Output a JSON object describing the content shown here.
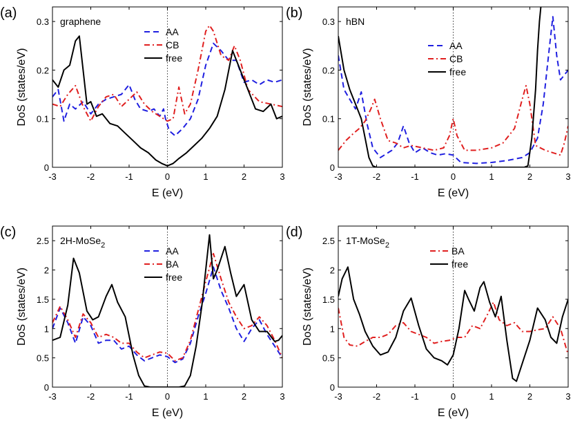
{
  "chart_data": [
    {
      "panel": "(a)",
      "title": "graphene",
      "type": "line",
      "xlabel": "E (eV)",
      "ylabel": "DoS (states/eV)",
      "xlim": [
        -3,
        3
      ],
      "ylim": [
        0,
        0.33
      ],
      "xticks": [
        -3,
        -2,
        -1,
        0,
        1,
        2,
        3
      ],
      "yticks": [
        0,
        0.1,
        0.2,
        0.3
      ],
      "ytick_labels": [
        "0",
        "0.1",
        "0.2",
        "0.3"
      ],
      "legend_position": "top-center",
      "series": [
        {
          "name": "AA",
          "color": "#1f1fe0",
          "dash": "dash",
          "x": [
            -3,
            -2.85,
            -2.7,
            -2.55,
            -2.4,
            -2.2,
            -2.0,
            -1.8,
            -1.6,
            -1.4,
            -1.2,
            -1.0,
            -0.85,
            -0.7,
            -0.5,
            -0.35,
            -0.2,
            -0.1,
            -0.05,
            0.05,
            0.2,
            0.4,
            0.6,
            0.8,
            1.0,
            1.2,
            1.4,
            1.6,
            1.8,
            2.0,
            2.2,
            2.4,
            2.6,
            2.8,
            3.0
          ],
          "y": [
            0.145,
            0.16,
            0.095,
            0.13,
            0.12,
            0.135,
            0.11,
            0.13,
            0.14,
            0.145,
            0.15,
            0.17,
            0.14,
            0.12,
            0.115,
            0.12,
            0.105,
            0.12,
            0.1,
            0.075,
            0.065,
            0.08,
            0.1,
            0.14,
            0.21,
            0.255,
            0.24,
            0.22,
            0.22,
            0.175,
            0.18,
            0.17,
            0.18,
            0.175,
            0.18
          ]
        },
        {
          "name": "CB",
          "color": "#e01f1f",
          "dash": "dashdot",
          "x": [
            -3,
            -2.8,
            -2.6,
            -2.4,
            -2.2,
            -2.0,
            -1.8,
            -1.6,
            -1.4,
            -1.2,
            -1.0,
            -0.8,
            -0.6,
            -0.4,
            -0.2,
            0,
            0.15,
            0.3,
            0.45,
            0.6,
            0.8,
            1.0,
            1.1,
            1.2,
            1.4,
            1.6,
            1.75,
            1.9,
            2.1,
            2.4,
            2.7,
            3.0
          ],
          "y": [
            0.13,
            0.125,
            0.15,
            0.168,
            0.125,
            0.095,
            0.125,
            0.145,
            0.15,
            0.125,
            0.14,
            0.155,
            0.13,
            0.115,
            0.105,
            0.095,
            0.1,
            0.165,
            0.11,
            0.13,
            0.2,
            0.28,
            0.292,
            0.28,
            0.23,
            0.22,
            0.25,
            0.22,
            0.16,
            0.135,
            0.13,
            0.125
          ]
        },
        {
          "name": "free",
          "color": "#000000",
          "dash": "solid",
          "x": [
            -3,
            -2.85,
            -2.7,
            -2.55,
            -2.4,
            -2.3,
            -2.2,
            -2.1,
            -2.0,
            -1.85,
            -1.7,
            -1.5,
            -1.3,
            -1.1,
            -0.9,
            -0.7,
            -0.5,
            -0.3,
            -0.15,
            0,
            0.15,
            0.3,
            0.5,
            0.7,
            0.9,
            1.1,
            1.3,
            1.5,
            1.7,
            1.9,
            2.1,
            2.3,
            2.5,
            2.7,
            2.85,
            3.0
          ],
          "y": [
            0.18,
            0.165,
            0.2,
            0.21,
            0.26,
            0.27,
            0.2,
            0.13,
            0.135,
            0.105,
            0.11,
            0.09,
            0.085,
            0.07,
            0.055,
            0.04,
            0.03,
            0.015,
            0.008,
            0.003,
            0.008,
            0.018,
            0.03,
            0.045,
            0.06,
            0.08,
            0.105,
            0.16,
            0.24,
            0.2,
            0.16,
            0.12,
            0.115,
            0.13,
            0.1,
            0.105
          ]
        }
      ]
    },
    {
      "panel": "(b)",
      "title": "hBN",
      "type": "line",
      "xlabel": "E (eV)",
      "ylabel": "DoS (states/eV)",
      "xlim": [
        -3,
        3
      ],
      "ylim": [
        0,
        0.33
      ],
      "xticks": [
        -3,
        -2,
        -1,
        0,
        1,
        2,
        3
      ],
      "yticks": [
        0,
        0.1,
        0.2,
        0.3
      ],
      "ytick_labels": [
        "0",
        "0.1",
        "0.2",
        "0.3"
      ],
      "legend_position": "top-center",
      "series": [
        {
          "name": "AA",
          "color": "#1f1fe0",
          "dash": "dash",
          "x": [
            -3,
            -2.85,
            -2.7,
            -2.55,
            -2.4,
            -2.25,
            -2.1,
            -1.9,
            -1.6,
            -1.45,
            -1.3,
            -1.15,
            -1.0,
            -0.8,
            -0.6,
            -0.4,
            -0.2,
            0,
            0.2,
            0.6,
            1.0,
            1.4,
            1.8,
            2.0,
            2.2,
            2.35,
            2.5,
            2.6,
            2.7,
            2.8,
            2.9,
            3.0
          ],
          "y": [
            0.23,
            0.16,
            0.14,
            0.12,
            0.155,
            0.09,
            0.04,
            0.02,
            0.035,
            0.05,
            0.085,
            0.05,
            0.03,
            0.04,
            0.03,
            0.025,
            0.028,
            0.025,
            0.01,
            0.008,
            0.01,
            0.014,
            0.02,
            0.03,
            0.06,
            0.13,
            0.24,
            0.31,
            0.23,
            0.18,
            0.19,
            0.2
          ]
        },
        {
          "name": "CB",
          "color": "#e01f1f",
          "dash": "dashdot",
          "x": [
            -3,
            -2.8,
            -2.6,
            -2.45,
            -2.3,
            -2.15,
            -2.05,
            -1.9,
            -1.7,
            -1.5,
            -1.3,
            -1.1,
            -0.8,
            -0.5,
            -0.25,
            -0.1,
            0,
            0.1,
            0.3,
            0.6,
            1.0,
            1.3,
            1.6,
            1.8,
            1.9,
            2.0,
            2.15,
            2.4,
            2.6,
            2.8,
            2.9,
            3.0
          ],
          "y": [
            0.035,
            0.055,
            0.07,
            0.08,
            0.095,
            0.12,
            0.14,
            0.1,
            0.055,
            0.05,
            0.04,
            0.045,
            0.04,
            0.035,
            0.04,
            0.065,
            0.1,
            0.065,
            0.035,
            0.035,
            0.04,
            0.05,
            0.08,
            0.14,
            0.168,
            0.13,
            0.045,
            0.035,
            0.03,
            0.025,
            0.05,
            0.085
          ]
        },
        {
          "name": "free",
          "color": "#000000",
          "dash": "solid",
          "x": [
            -3,
            -2.85,
            -2.7,
            -2.55,
            -2.4,
            -2.3,
            -2.2,
            -2.1,
            -2.0,
            -1.0,
            0,
            1.0,
            1.85,
            1.95,
            2.05,
            2.15,
            2.2,
            2.25,
            2.3
          ],
          "y": [
            0.27,
            0.2,
            0.16,
            0.13,
            0.1,
            0.06,
            0.02,
            0.003,
            0,
            0,
            0,
            0,
            0,
            0.003,
            0.06,
            0.16,
            0.24,
            0.3,
            0.34
          ]
        }
      ]
    },
    {
      "panel": "(c)",
      "title": "2H-MoSe",
      "title_sub": "2",
      "type": "line",
      "xlabel": "E (eV)",
      "ylabel": "DoS (states/eV)",
      "xlim": [
        -3,
        3
      ],
      "ylim": [
        0,
        2.75
      ],
      "xticks": [
        -3,
        -2,
        -1,
        0,
        1,
        2,
        3
      ],
      "yticks": [
        0,
        0.5,
        1,
        1.5,
        2,
        2.5
      ],
      "ytick_labels": [
        "0",
        "0.5",
        "1",
        "1.5",
        "2",
        "2.5"
      ],
      "legend_position": "top-center",
      "series": [
        {
          "name": "AA",
          "color": "#1f1fe0",
          "dash": "dash",
          "x": [
            -3,
            -2.8,
            -2.6,
            -2.4,
            -2.2,
            -2.0,
            -1.8,
            -1.6,
            -1.4,
            -1.2,
            -1.0,
            -0.8,
            -0.6,
            -0.4,
            -0.2,
            0,
            0.2,
            0.4,
            0.6,
            0.8,
            1.0,
            1.2,
            1.4,
            1.6,
            1.8,
            2.0,
            2.2,
            2.4,
            2.6,
            2.8,
            3.0
          ],
          "y": [
            1.0,
            1.35,
            1.1,
            0.75,
            1.2,
            1.05,
            0.75,
            0.8,
            0.8,
            0.65,
            0.7,
            0.55,
            0.45,
            0.5,
            0.55,
            0.52,
            0.42,
            0.48,
            0.75,
            1.2,
            1.6,
            2.05,
            1.65,
            1.35,
            1.0,
            0.78,
            1.0,
            1.15,
            0.9,
            0.7,
            0.5
          ]
        },
        {
          "name": "BA",
          "color": "#e01f1f",
          "dash": "dashdot",
          "x": [
            -3,
            -2.8,
            -2.6,
            -2.4,
            -2.2,
            -2.0,
            -1.8,
            -1.6,
            -1.4,
            -1.2,
            -1.0,
            -0.8,
            -0.6,
            -0.4,
            -0.2,
            0,
            0.2,
            0.4,
            0.6,
            0.8,
            1.0,
            1.2,
            1.4,
            1.6,
            1.8,
            2.0,
            2.2,
            2.4,
            2.6,
            2.8,
            3.0
          ],
          "y": [
            1.1,
            1.38,
            1.15,
            0.85,
            1.25,
            1.1,
            0.85,
            0.9,
            0.85,
            0.75,
            0.75,
            0.6,
            0.5,
            0.55,
            0.6,
            0.58,
            0.45,
            0.5,
            0.8,
            1.3,
            1.8,
            2.28,
            1.85,
            1.45,
            1.2,
            1.0,
            1.05,
            1.2,
            1.05,
            0.8,
            0.5
          ]
        },
        {
          "name": "free",
          "color": "#000000",
          "dash": "solid",
          "x": [
            -3,
            -2.8,
            -2.6,
            -2.45,
            -2.3,
            -2.1,
            -1.95,
            -1.8,
            -1.6,
            -1.45,
            -1.3,
            -1.1,
            -0.9,
            -0.75,
            -0.6,
            -0.45,
            -0.3,
            0,
            0.3,
            0.45,
            0.6,
            0.75,
            0.9,
            1.0,
            1.1,
            1.2,
            1.3,
            1.5,
            1.65,
            1.8,
            2.0,
            2.2,
            2.4,
            2.6,
            2.8,
            2.9,
            3.0
          ],
          "y": [
            0.8,
            0.85,
            1.4,
            2.2,
            1.95,
            1.3,
            1.15,
            1.2,
            1.55,
            1.75,
            1.45,
            1.2,
            0.55,
            0.2,
            0.02,
            0,
            0,
            0,
            0,
            0.02,
            0.2,
            0.7,
            1.4,
            2.0,
            2.6,
            1.85,
            2.0,
            2.4,
            1.95,
            1.55,
            1.75,
            1.15,
            0.95,
            0.95,
            0.78,
            0.8,
            0.88
          ]
        }
      ]
    },
    {
      "panel": "(d)",
      "title": "1T-MoSe",
      "title_sub": "2",
      "type": "line",
      "xlabel": "E (eV)",
      "ylabel": "DoS (states/eV)",
      "xlim": [
        -3,
        3
      ],
      "ylim": [
        0,
        2.75
      ],
      "xticks": [
        -3,
        -2,
        -1,
        0,
        1,
        2,
        3
      ],
      "yticks": [
        0,
        0.5,
        1,
        1.5,
        2,
        2.5
      ],
      "ytick_labels": [
        "0",
        "0.5",
        "1",
        "1.5",
        "2",
        "2.5"
      ],
      "legend_position": "top-center",
      "series": [
        {
          "name": "BA",
          "color": "#e01f1f",
          "dash": "dashdot",
          "x": [
            -3,
            -2.85,
            -2.7,
            -2.5,
            -2.3,
            -2.1,
            -1.9,
            -1.7,
            -1.5,
            -1.3,
            -1.1,
            -0.9,
            -0.7,
            -0.5,
            -0.3,
            -0.1,
            0.1,
            0.3,
            0.5,
            0.7,
            0.9,
            1.05,
            1.2,
            1.4,
            1.6,
            1.8,
            2.0,
            2.2,
            2.4,
            2.6,
            2.8,
            3.0
          ],
          "y": [
            1.35,
            0.85,
            0.72,
            0.7,
            0.78,
            0.85,
            0.85,
            0.9,
            1.05,
            1.1,
            0.95,
            0.9,
            0.85,
            0.75,
            0.78,
            0.8,
            0.85,
            0.85,
            1.05,
            1.0,
            1.25,
            1.45,
            1.15,
            1.05,
            1.1,
            0.95,
            0.95,
            0.98,
            1.0,
            1.2,
            1.0,
            0.55
          ]
        },
        {
          "name": "free",
          "color": "#000000",
          "dash": "solid",
          "x": [
            -3,
            -2.9,
            -2.75,
            -2.6,
            -2.45,
            -2.3,
            -2.1,
            -1.9,
            -1.7,
            -1.5,
            -1.3,
            -1.1,
            -0.9,
            -0.7,
            -0.5,
            -0.3,
            -0.15,
            0,
            0.15,
            0.3,
            0.4,
            0.55,
            0.7,
            0.8,
            0.95,
            1.1,
            1.25,
            1.4,
            1.55,
            1.65,
            1.8,
            2.0,
            2.2,
            2.4,
            2.55,
            2.7,
            2.85,
            3.0
          ],
          "y": [
            1.55,
            1.85,
            2.05,
            1.5,
            1.25,
            0.95,
            0.7,
            0.55,
            0.6,
            0.85,
            1.3,
            1.52,
            1.05,
            0.65,
            0.5,
            0.45,
            0.38,
            0.55,
            1.0,
            1.65,
            1.5,
            1.3,
            1.7,
            1.8,
            1.45,
            1.2,
            1.55,
            0.8,
            0.15,
            0.1,
            0.4,
            0.8,
            1.35,
            1.15,
            0.85,
            0.75,
            1.2,
            1.5
          ]
        }
      ]
    }
  ]
}
